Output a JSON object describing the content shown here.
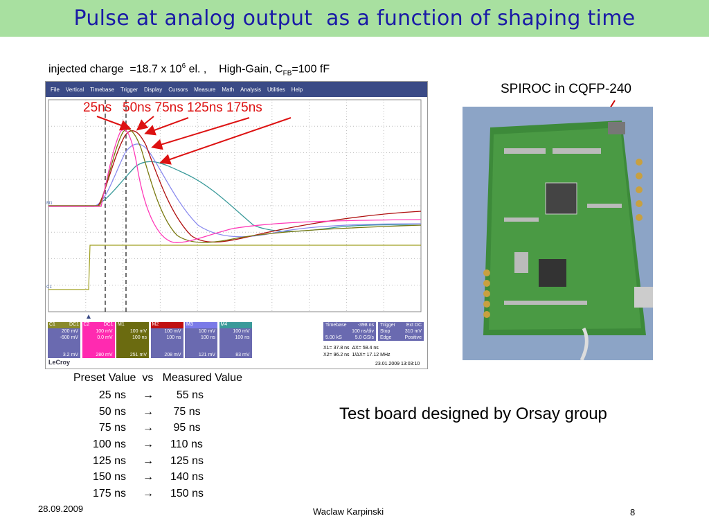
{
  "title": "Pulse at analog output  as a function of shaping time",
  "caption": {
    "prefix": "injected charge  =18.7 x 10",
    "exp": "6",
    "middle": " el. ,    High-Gain, C",
    "sub": "FB",
    "suffix": "=100 fF"
  },
  "annotation": "25ns   50ns 75ns 125ns 175ns",
  "scope": {
    "menu": [
      "File",
      "Vertical",
      "Timebase",
      "Trigger",
      "Display",
      "Cursors",
      "Measure",
      "Math",
      "Analysis",
      "Utilities",
      "Help"
    ],
    "channels": [
      {
        "name": "C1",
        "tag": "DC1",
        "v1": "200 mV",
        "v2": "-600 mV",
        "foot": "3.2 mV",
        "color": "#8a8a2a",
        "bg": "#6a6ab0"
      },
      {
        "name": "C2",
        "tag": "DC1",
        "v1": "100 mV",
        "v2": "0.0 mV",
        "foot": "280 mV",
        "color": "#ff2ab0",
        "bg": "#ff2ab0"
      },
      {
        "name": "M1",
        "tag": "",
        "v1": "100 mV",
        "v2": "100 ns",
        "foot": "251 mV",
        "color": "#6b6b10",
        "bg": "#6b6b10"
      },
      {
        "name": "M2",
        "tag": "",
        "v1": "100 mV",
        "v2": "100 ns",
        "foot": "208 mV",
        "color": "#c01010",
        "bg": "#6a6ab0"
      },
      {
        "name": "M3",
        "tag": "",
        "v1": "100 mV",
        "v2": "100 ns",
        "foot": "121 mV",
        "color": "#7a7ae8",
        "bg": "#6a6ab0"
      },
      {
        "name": "M4",
        "tag": "",
        "v1": "100 mV",
        "v2": "100 ns",
        "foot": "83 mV",
        "color": "#3a9a9a",
        "bg": "#6a6ab0"
      }
    ],
    "timebase": {
      "label": "Timebase",
      "offset": "-398 ns",
      "div": "100 ns/div",
      "ks": "5.00 kS",
      "rate": "5.0 GS/s"
    },
    "trigger": {
      "label": "Trigger",
      "mode": "Ext DC",
      "stop": "Stop",
      "level": "310 mV",
      "edge": "Edge",
      "slope": "Positive"
    },
    "cursors": {
      "x1": "X1=  37.8 ns",
      "dx": "ΔX=   58.4 ns",
      "x2": "X2=  96.2 ns",
      "f": "1/ΔX=   17.12 MHz"
    },
    "brand": "LeCroy",
    "timestamp": "23.01.2009 13:03:10"
  },
  "board_label": "SPIROC in CQFP-240",
  "test_label": "Test board designed by Orsay group",
  "table": {
    "header": "Preset Value  vs   Measured Value",
    "arrow": "→",
    "rows": [
      {
        "preset": "25 ns",
        "measured": "  55 ns"
      },
      {
        "preset": "50 ns",
        "measured": " 75 ns"
      },
      {
        "preset": "75 ns",
        "measured": " 95 ns"
      },
      {
        "preset": "100 ns",
        "measured": "110 ns"
      },
      {
        "preset": "125 ns",
        "measured": "125 ns"
      },
      {
        "preset": "150 ns",
        "measured": "140 ns"
      },
      {
        "preset": "175 ns",
        "measured": "150 ns"
      }
    ]
  },
  "footer": {
    "date": "28.09.2009",
    "author": "Waclaw Karpinski",
    "page": "8"
  }
}
